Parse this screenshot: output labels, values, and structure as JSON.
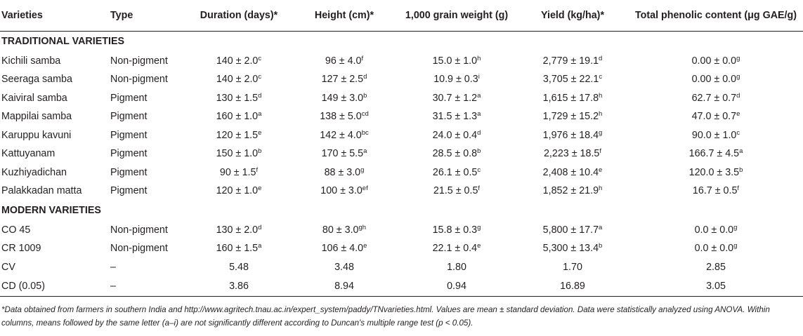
{
  "headers": [
    "Varieties",
    "Type",
    "Duration (days)*",
    "Height (cm)*",
    "1,000 grain weight (g)",
    "Yield (kg/ha)*",
    "Total phenolic content (μg GAE/g)"
  ],
  "sections": [
    {
      "title": "TRADITIONAL VARIETIES",
      "rows": [
        [
          [
            "Kichili samba",
            ""
          ],
          [
            "Non-pigment",
            ""
          ],
          [
            "140 ± 2.0",
            "c"
          ],
          [
            "96 ± 4.0",
            "f"
          ],
          [
            "15.0 ± 1.0",
            "h"
          ],
          [
            "2,779 ± 19.1",
            "d"
          ],
          [
            "0.00 ± 0.0",
            "g"
          ]
        ],
        [
          [
            "Seeraga samba",
            ""
          ],
          [
            "Non-pigment",
            ""
          ],
          [
            "140 ± 2.0",
            "c"
          ],
          [
            "127 ± 2.5",
            "d"
          ],
          [
            "10.9 ± 0.3",
            "i"
          ],
          [
            "3,705 ± 22.1",
            "c"
          ],
          [
            "0.00 ± 0.0",
            "g"
          ]
        ],
        [
          [
            "Kaiviral samba",
            ""
          ],
          [
            "Pigment",
            ""
          ],
          [
            "130 ± 1.5",
            "d"
          ],
          [
            "149 ± 3.0",
            "b"
          ],
          [
            "30.7 ± 1.2",
            "a"
          ],
          [
            "1,615 ± 17.8",
            "h"
          ],
          [
            "62.7 ± 0.7",
            "d"
          ]
        ],
        [
          [
            "Mappilai samba",
            ""
          ],
          [
            "Pigment",
            ""
          ],
          [
            "160 ± 1.0",
            "a"
          ],
          [
            "138 ± 5.0",
            "cd"
          ],
          [
            "31.5 ± 1.3",
            "a"
          ],
          [
            "1,729 ± 15.2",
            "h"
          ],
          [
            "47.0 ± 0.7",
            "e"
          ]
        ],
        [
          [
            "Karuppu kavuni",
            ""
          ],
          [
            "Pigment",
            ""
          ],
          [
            "120 ± 1.5",
            "e"
          ],
          [
            "142 ± 4.0",
            "bc"
          ],
          [
            "24.0 ± 0.4",
            "d"
          ],
          [
            "1,976 ± 18.4",
            "g"
          ],
          [
            "90.0 ± 1.0",
            "c"
          ]
        ],
        [
          [
            "Kattuyanam",
            ""
          ],
          [
            "Pigment",
            ""
          ],
          [
            "150 ± 1.0",
            "b"
          ],
          [
            "170 ± 5.5",
            "a"
          ],
          [
            "28.5 ± 0.8",
            "b"
          ],
          [
            "2,223 ± 18.5",
            "f"
          ],
          [
            "166.7 ± 4.5",
            "a"
          ]
        ],
        [
          [
            "Kuzhiyadichan",
            ""
          ],
          [
            "Pigment",
            ""
          ],
          [
            "90 ± 1.5",
            "f"
          ],
          [
            "88 ± 3.0",
            "g"
          ],
          [
            "26.1 ± 0.5",
            "c"
          ],
          [
            "2,408 ± 10.4",
            "e"
          ],
          [
            "120.0 ± 3.5",
            "b"
          ]
        ],
        [
          [
            "Palakkadan matta",
            ""
          ],
          [
            "Pigment",
            ""
          ],
          [
            "120 ± 1.0",
            "e"
          ],
          [
            "100 ± 3.0",
            "ef"
          ],
          [
            "21.5 ± 0.5",
            "f"
          ],
          [
            "1,852 ± 21.9",
            "h"
          ],
          [
            "16.7 ± 0.5",
            "f"
          ]
        ]
      ]
    },
    {
      "title": "MODERN VARIETIES",
      "rows": [
        [
          [
            "CO 45",
            ""
          ],
          [
            "Non-pigment",
            ""
          ],
          [
            "130 ± 2.0",
            "d"
          ],
          [
            "80 ± 3.0",
            "gh"
          ],
          [
            "15.8 ± 0.3",
            "g"
          ],
          [
            "5,800 ± 17.7",
            "a"
          ],
          [
            "0.0 ± 0.0",
            "g"
          ]
        ],
        [
          [
            "CR 1009",
            ""
          ],
          [
            "Non-pigment",
            ""
          ],
          [
            "160 ± 1.5",
            "a"
          ],
          [
            "106 ± 4.0",
            "e"
          ],
          [
            "22.1 ± 0.4",
            "e"
          ],
          [
            "5,300 ± 13.4",
            "b"
          ],
          [
            "0.0 ± 0.0",
            "g"
          ]
        ],
        [
          [
            "CV",
            ""
          ],
          [
            "–",
            ""
          ],
          [
            "5.48",
            ""
          ],
          [
            "3.48",
            ""
          ],
          [
            "1.80",
            ""
          ],
          [
            "1.70",
            ""
          ],
          [
            "2.85",
            ""
          ]
        ],
        [
          [
            "CD (0.05)",
            ""
          ],
          [
            "–",
            ""
          ],
          [
            "3.86",
            ""
          ],
          [
            "8.94",
            ""
          ],
          [
            "0.94",
            ""
          ],
          [
            "16.89",
            ""
          ],
          [
            "3.05",
            ""
          ]
        ]
      ]
    }
  ],
  "footnote": "*Data obtained from farmers in southern India and http://www.agritech.tnau.ac.in/expert_system/paddy/TNvarieties.html. Values are mean ± standard deviation. Data were statistically analyzed using ANOVA. Within columns, means followed by the same letter (a–i) are not significantly different according to Duncan's multiple range test (p < 0.05)."
}
